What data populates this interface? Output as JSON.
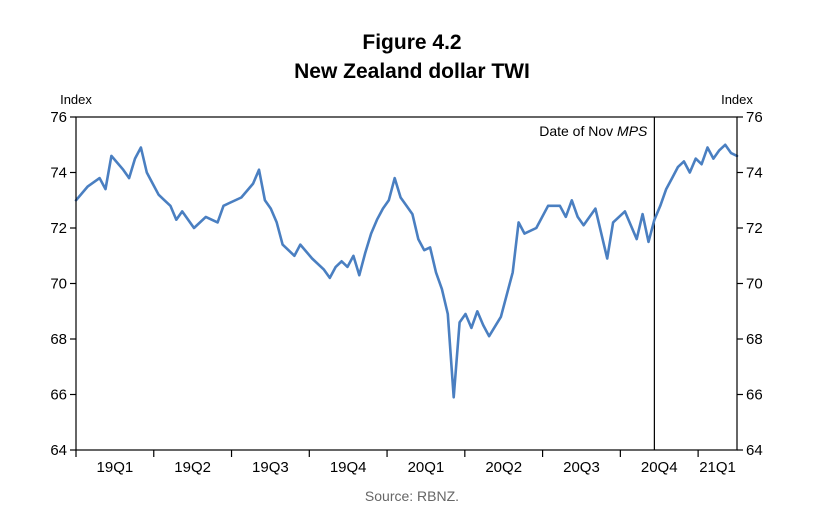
{
  "figure": {
    "title": "Figure 4.2",
    "subtitle": "New Zealand dollar TWI",
    "source": "Source: RBNZ."
  },
  "chart_data": {
    "type": "line",
    "title": "New Zealand dollar TWI",
    "ylabel_left": "Index",
    "ylabel_right": "Index",
    "ylim": [
      64,
      76
    ],
    "yticks": [
      64,
      66,
      68,
      70,
      72,
      74,
      76
    ],
    "x_quarters": [
      "19Q1",
      "19Q2",
      "19Q3",
      "19Q4",
      "20Q1",
      "20Q2",
      "20Q3",
      "20Q4",
      "21Q1"
    ],
    "x_range_weeks": [
      0,
      112
    ],
    "annotation": {
      "label_prefix": "Date of Nov ",
      "label_italic": "MPS",
      "x_week": 98
    },
    "line_color": "#4a7fc1",
    "series": [
      {
        "x": [
          0,
          2,
          4,
          5,
          6,
          8,
          9,
          10,
          11,
          12,
          13,
          14,
          15,
          16,
          17,
          18,
          20,
          22,
          24,
          25,
          26,
          28,
          30,
          31,
          32,
          33,
          34,
          35,
          36,
          37,
          38,
          40,
          42,
          43,
          44,
          45,
          46,
          47,
          48,
          49,
          50,
          51,
          52,
          53,
          54,
          55,
          56,
          57,
          58,
          59,
          60,
          61,
          62,
          63,
          64,
          65,
          66,
          67,
          68,
          69,
          70,
          72,
          74,
          75,
          76,
          78,
          80,
          82,
          83,
          84,
          85,
          86,
          88,
          90,
          91,
          92,
          93,
          94,
          95,
          96,
          97,
          98,
          99,
          100,
          101,
          102,
          103,
          104,
          105,
          106,
          107,
          108,
          109,
          110,
          111,
          112
        ],
        "y": [
          73.0,
          73.5,
          73.8,
          73.4,
          74.6,
          74.1,
          73.8,
          74.5,
          74.9,
          74.0,
          73.6,
          73.2,
          73.0,
          72.8,
          72.3,
          72.6,
          72.0,
          72.4,
          72.2,
          72.8,
          72.9,
          73.1,
          73.6,
          74.1,
          73.0,
          72.7,
          72.2,
          71.4,
          71.2,
          71.0,
          71.4,
          70.9,
          70.5,
          70.2,
          70.6,
          70.8,
          70.6,
          71.0,
          70.3,
          71.1,
          71.8,
          72.3,
          72.7,
          73.0,
          73.8,
          73.1,
          72.8,
          72.5,
          71.6,
          71.2,
          71.3,
          70.4,
          69.8,
          68.9,
          65.9,
          68.6,
          68.9,
          68.4,
          69.0,
          68.5,
          68.1,
          68.8,
          70.4,
          72.2,
          71.8,
          72.0,
          72.8,
          72.8,
          72.4,
          73.0,
          72.4,
          72.1,
          72.7,
          70.9,
          72.2,
          72.4,
          72.6,
          72.1,
          71.6,
          72.5,
          71.5,
          72.3,
          72.8,
          73.4,
          73.8,
          74.2,
          74.4,
          74.0,
          74.5,
          74.3,
          74.9,
          74.5,
          74.8,
          75.0,
          74.7,
          74.6
        ]
      }
    ]
  }
}
